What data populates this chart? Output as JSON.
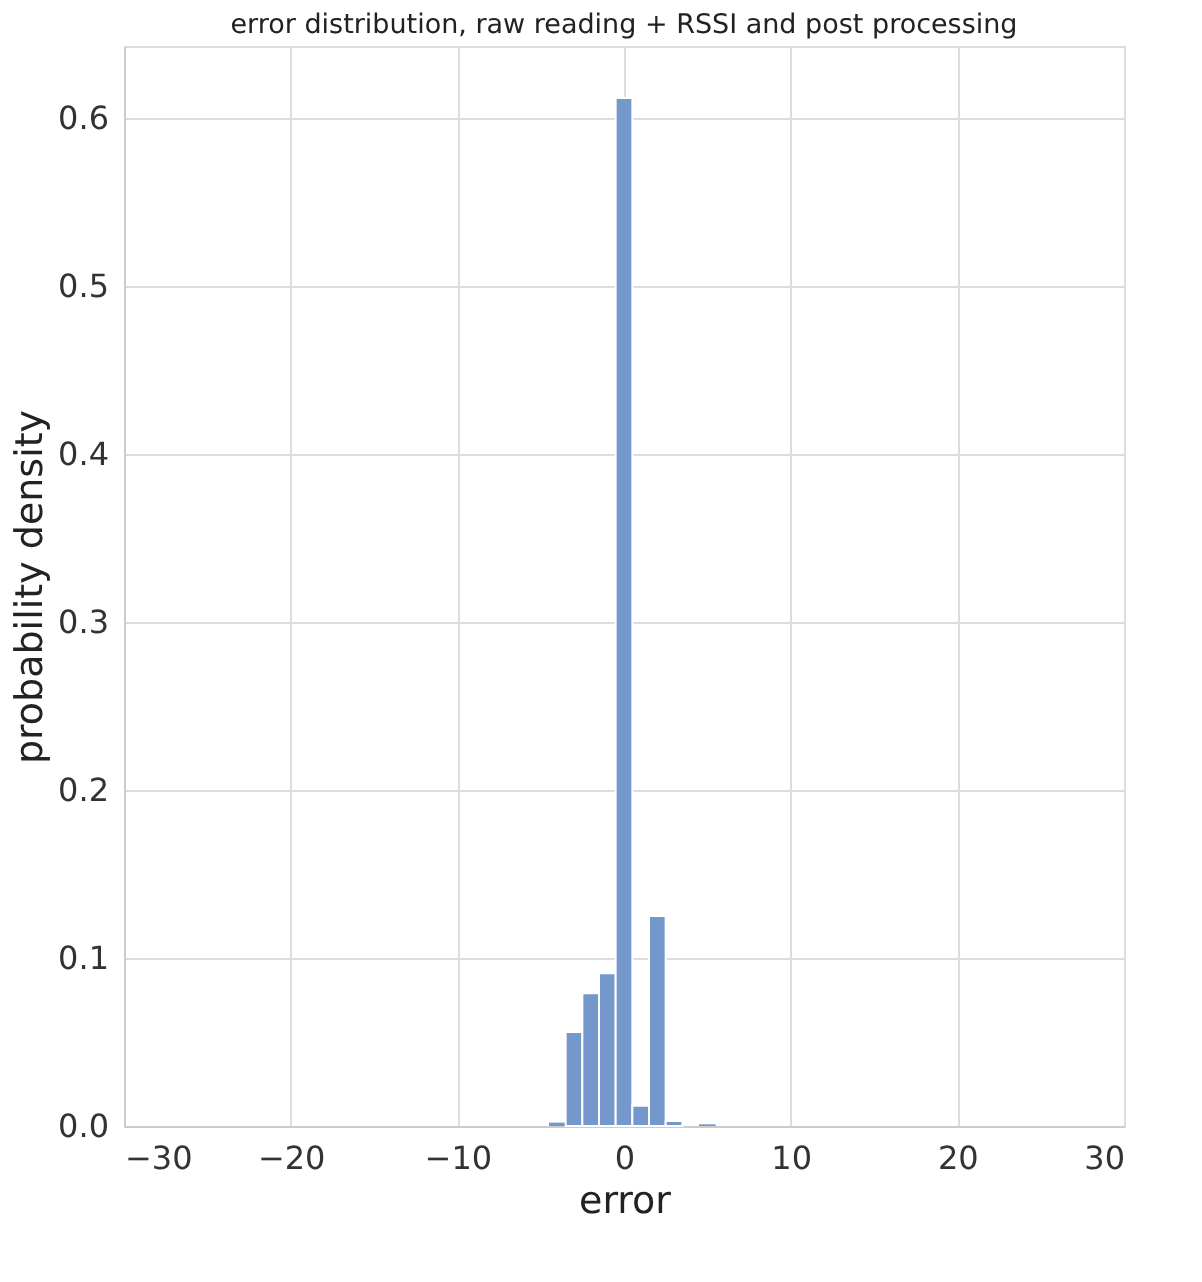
{
  "chart_data": {
    "type": "histogram",
    "title": "error distribution, raw reading + RSSI and post processing",
    "xlabel": "error",
    "ylabel": "probability density",
    "bins": [
      -4.5,
      -3.5,
      -2.5,
      -1.5,
      -0.5,
      0.5,
      1.5,
      2.5,
      3.5,
      4.5,
      5.5
    ],
    "values": [
      0.002,
      0.056,
      0.079,
      0.091,
      0.612,
      0.012,
      0.125,
      0.003,
      0,
      0.001
    ],
    "color": "#7598cc",
    "xlim": [
      -30,
      30
    ],
    "xticks": [
      -30,
      -20,
      -10,
      0,
      10,
      20,
      30
    ],
    "ylim": [
      0,
      0.643
    ],
    "yticks": [
      {
        "value": 0,
        "label": "0.0"
      },
      0.1,
      0.2,
      0.3,
      0.4,
      0.5,
      0.6
    ],
    "grid": true
  }
}
